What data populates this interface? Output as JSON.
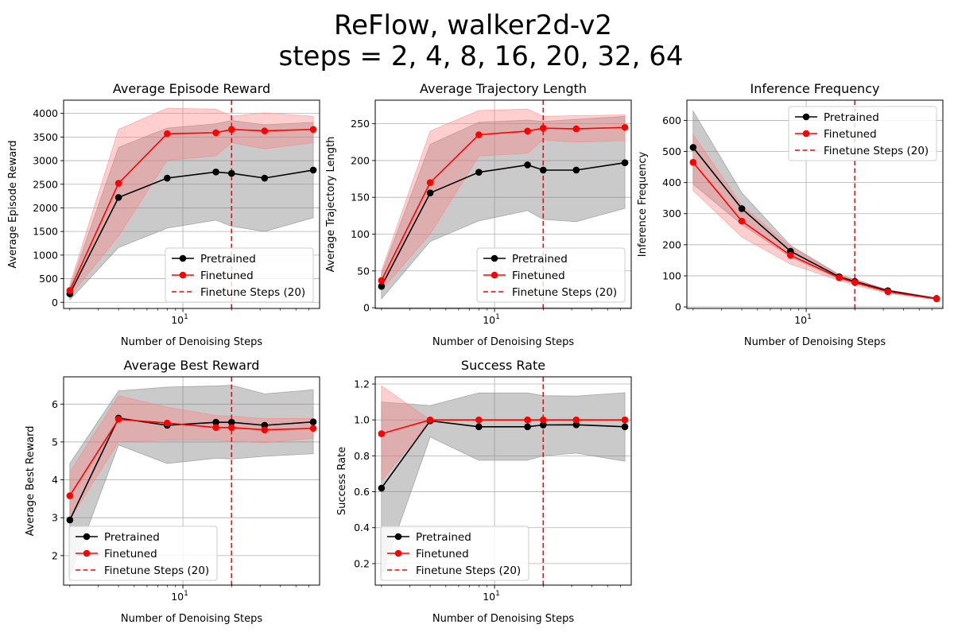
{
  "figure": {
    "title_line1": "ReFlow, walker2d-v2",
    "title_line2": "steps = 2, 4, 8, 16, 20, 32, 64"
  },
  "colors": {
    "pretrained": "#000000",
    "finetuned": "#ff0000",
    "pretrained_band": "#808080",
    "finetuned_band": "#ff8080",
    "vline": "#ff0000",
    "grid": "#b0b0b0"
  },
  "legend_labels": [
    "Pretrained",
    "Finetuned",
    "Finetune Steps (20)"
  ],
  "chart_data": [
    {
      "type": "line",
      "title": "Average Episode Reward",
      "xlabel": "Number of Denoising Steps",
      "ylabel": "Average Episode Reward",
      "xscale": "log",
      "x": [
        2,
        4,
        8,
        16,
        20,
        32,
        64
      ],
      "xlim": [
        1.83,
        70
      ],
      "ylim": [
        -130,
        4280
      ],
      "yticks": [
        0,
        500,
        1000,
        1500,
        2000,
        2500,
        3000,
        3500,
        4000
      ],
      "xtick_major": [
        10
      ],
      "xtick_labels": [
        "10"
      ],
      "xtick_minor": [
        2,
        3,
        4,
        5,
        6,
        7,
        8,
        9,
        20,
        30,
        40,
        50,
        60
      ],
      "grid": true,
      "legend_position": "lower-right",
      "vline": {
        "x": 20,
        "label": "Finetune Steps (20)"
      },
      "series": [
        {
          "name": "Pretrained",
          "values": [
            180,
            2220,
            2630,
            2760,
            2730,
            2630,
            2800
          ],
          "lower": [
            50,
            1160,
            1570,
            1740,
            1610,
            1500,
            1790
          ],
          "upper": [
            310,
            3280,
            3690,
            3780,
            3850,
            3760,
            3810
          ]
        },
        {
          "name": "Finetuned",
          "values": [
            250,
            2520,
            3570,
            3590,
            3660,
            3630,
            3660
          ],
          "lower": [
            130,
            1400,
            3010,
            3100,
            3380,
            3250,
            3380
          ],
          "upper": [
            370,
            3660,
            4110,
            4090,
            3940,
            4010,
            3940
          ]
        }
      ]
    },
    {
      "type": "line",
      "title": "Average Trajectory Length",
      "xlabel": "Number of Denoising Steps",
      "ylabel": "Average Trajectory Length",
      "xscale": "log",
      "x": [
        2,
        4,
        8,
        16,
        20,
        32,
        64
      ],
      "xlim": [
        1.83,
        70
      ],
      "ylim": [
        -1,
        282
      ],
      "yticks": [
        0,
        50,
        100,
        150,
        200,
        250
      ],
      "xtick_major": [
        10
      ],
      "xtick_labels": [
        "10"
      ],
      "xtick_minor": [
        2,
        3,
        4,
        5,
        6,
        7,
        8,
        9,
        20,
        30,
        40,
        50,
        60
      ],
      "grid": true,
      "legend_position": "lower-right",
      "vline": {
        "x": 20,
        "label": "Finetune Steps (20)"
      },
      "series": [
        {
          "name": "Pretrained",
          "values": [
            29,
            156,
            184,
            194,
            187,
            187,
            197
          ],
          "lower": [
            12,
            90,
            118,
            132,
            120,
            117,
            135
          ],
          "upper": [
            46,
            222,
            252,
            255,
            253,
            256,
            260
          ]
        },
        {
          "name": "Finetuned",
          "values": [
            37,
            170,
            235,
            240,
            244,
            243,
            245
          ],
          "lower": [
            24,
            100,
            206,
            210,
            228,
            225,
            227
          ],
          "upper": [
            50,
            240,
            268,
            270,
            260,
            261,
            262
          ]
        }
      ]
    },
    {
      "type": "line",
      "title": "Inference Frequency",
      "xlabel": "Number of Denoising Steps",
      "ylabel": "Inference Frequency",
      "xscale": "log",
      "x": [
        2,
        4,
        8,
        16,
        20,
        32,
        64
      ],
      "xlim": [
        1.83,
        70
      ],
      "ylim": [
        -5,
        665
      ],
      "yticks": [
        0,
        100,
        200,
        300,
        400,
        500,
        600
      ],
      "xtick_major": [
        10
      ],
      "xtick_labels": [
        "10"
      ],
      "xtick_minor": [
        2,
        3,
        4,
        5,
        6,
        7,
        8,
        9,
        20,
        30,
        40,
        50,
        60
      ],
      "grid": true,
      "legend_position": "upper-right",
      "vline": {
        "x": 20,
        "label": "Finetune Steps (20)"
      },
      "series": [
        {
          "name": "Pretrained",
          "values": [
            513,
            316,
            179,
            97,
            82,
            52,
            27
          ],
          "lower": [
            395,
            265,
            160,
            90,
            75,
            49,
            25
          ],
          "upper": [
            630,
            367,
            198,
            104,
            89,
            55,
            29
          ]
        },
        {
          "name": "Finetuned",
          "values": [
            465,
            276,
            166,
            94,
            79,
            49,
            26
          ],
          "lower": [
            375,
            225,
            138,
            85,
            70,
            44,
            24
          ],
          "upper": [
            555,
            327,
            194,
            103,
            88,
            54,
            28
          ]
        }
      ]
    },
    {
      "type": "line",
      "title": "Average Best Reward",
      "xlabel": "Number of Denoising Steps",
      "ylabel": "Average Best Reward",
      "xscale": "log",
      "x": [
        2,
        4,
        8,
        16,
        20,
        32,
        64
      ],
      "xlim": [
        1.83,
        70
      ],
      "ylim": [
        1.22,
        6.72
      ],
      "yticks": [
        2,
        3,
        4,
        5,
        6
      ],
      "xtick_major": [
        10
      ],
      "xtick_labels": [
        "10"
      ],
      "xtick_minor": [
        2,
        3,
        4,
        5,
        6,
        7,
        8,
        9,
        20,
        30,
        40,
        50,
        60
      ],
      "grid": true,
      "legend_position": "lower-left",
      "vline": {
        "x": 20,
        "label": "Finetune Steps (20)"
      },
      "series": [
        {
          "name": "Pretrained",
          "values": [
            2.94,
            5.63,
            5.44,
            5.52,
            5.52,
            5.44,
            5.53
          ],
          "lower": [
            1.45,
            4.92,
            4.43,
            4.57,
            4.55,
            4.62,
            4.69
          ],
          "upper": [
            4.43,
            6.35,
            6.45,
            6.48,
            6.5,
            6.27,
            6.38
          ]
        },
        {
          "name": "Finetuned",
          "values": [
            3.58,
            5.6,
            5.5,
            5.38,
            5.38,
            5.32,
            5.36
          ],
          "lower": [
            2.95,
            5.0,
            5.05,
            5.05,
            5.02,
            4.98,
            5.1
          ],
          "upper": [
            4.2,
            6.22,
            5.92,
            5.7,
            5.68,
            5.62,
            5.62
          ]
        }
      ]
    },
    {
      "type": "line",
      "title": "Success Rate",
      "xlabel": "Number of Denoising Steps",
      "ylabel": "Success Rate",
      "xscale": "log",
      "x": [
        2,
        4,
        8,
        16,
        20,
        32,
        64
      ],
      "xlim": [
        1.83,
        70
      ],
      "ylim": [
        0.08,
        1.24
      ],
      "yticks": [
        0.2,
        0.4,
        0.6,
        0.8,
        1.0,
        1.2
      ],
      "ytick_labels": [
        "0.2",
        "0.4",
        "0.6",
        "0.8",
        "1.0",
        "1.2"
      ],
      "xtick_major": [
        10
      ],
      "xtick_labels": [
        "10"
      ],
      "xtick_minor": [
        2,
        3,
        4,
        5,
        6,
        7,
        8,
        9,
        20,
        30,
        40,
        50,
        60
      ],
      "grid": true,
      "legend_position": "lower-left",
      "vline": {
        "x": 20,
        "label": "Finetune Steps (20)"
      },
      "series": [
        {
          "name": "Pretrained",
          "values": [
            0.62,
            0.995,
            0.962,
            0.962,
            0.972,
            0.973,
            0.962
          ],
          "lower": [
            0.13,
            0.905,
            0.775,
            0.775,
            0.8,
            0.815,
            0.77
          ],
          "upper": [
            1.1,
            1.08,
            1.15,
            1.15,
            1.135,
            1.133,
            1.152
          ]
        },
        {
          "name": "Finetuned",
          "values": [
            0.923,
            1.0,
            1.0,
            1.0,
            1.0,
            1.0,
            1.0
          ],
          "lower": [
            0.66,
            1.0,
            1.0,
            1.0,
            1.0,
            1.0,
            1.0
          ],
          "upper": [
            1.19,
            1.0,
            1.0,
            1.0,
            1.0,
            1.0,
            1.0
          ]
        }
      ]
    }
  ]
}
